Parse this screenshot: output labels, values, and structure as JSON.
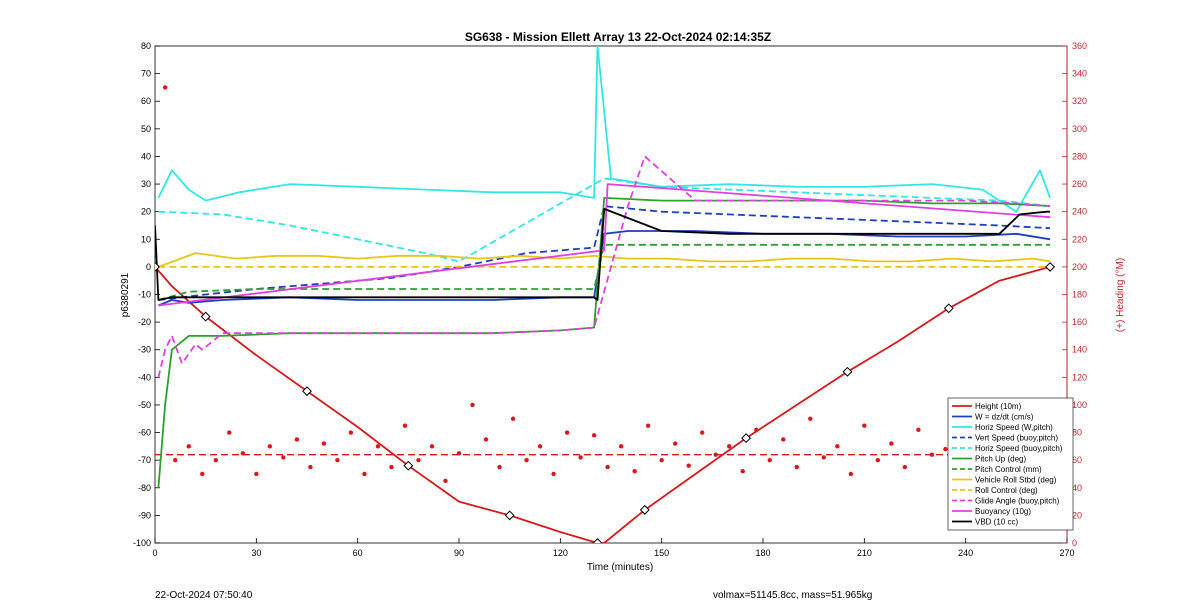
{
  "chart_data": {
    "type": "line",
    "title": "SG638 - Mission Ellett Array 13 22-Oct-2024 02:14:35Z",
    "xlabel": "Time (minutes)",
    "ylabel": "p6380291",
    "ylabel_right": "(+) Heading (°M)",
    "xlim": [
      0,
      270
    ],
    "ylim": [
      -100,
      80
    ],
    "ylim_right": [
      0,
      360
    ],
    "xticks": [
      0,
      30,
      60,
      90,
      120,
      150,
      180,
      210,
      240,
      270
    ],
    "yticks": [
      80,
      70,
      60,
      50,
      40,
      30,
      20,
      10,
      0,
      -10,
      -20,
      -30,
      -40,
      -50,
      -60,
      -70,
      -80,
      -90,
      -100
    ],
    "yticks_right": [
      360,
      340,
      320,
      300,
      280,
      260,
      240,
      220,
      200,
      180,
      160,
      140,
      120,
      100,
      80,
      60,
      40,
      20,
      0
    ],
    "grid": false,
    "legend_position": "bottom-right",
    "footer_left": "22-Oct-2024 07:50:40",
    "footer_right": "volmax=51145.8cc, mass=51.965kg",
    "series": [
      {
        "name": "Height (10m)",
        "color": "#d7191c",
        "style": "solid",
        "x": [
          0,
          5,
          15,
          30,
          45,
          60,
          75,
          90,
          105,
          120,
          131,
          133,
          145,
          160,
          175,
          190,
          205,
          220,
          235,
          250,
          265
        ],
        "y": [
          0,
          -7,
          -18,
          -32,
          -45,
          -58,
          -72,
          -85,
          -90,
          -96,
          -100,
          -100,
          -88,
          -75,
          -62,
          -50,
          -38,
          -27,
          -15,
          -5,
          0
        ]
      },
      {
        "name": "W = dz/dt (cm/s)",
        "color": "#1f3fbf",
        "style": "solid",
        "x": [
          1,
          5,
          10,
          20,
          40,
          60,
          80,
          100,
          120,
          130,
          133,
          140,
          160,
          180,
          200,
          220,
          240,
          255,
          265
        ],
        "y": [
          -14,
          -12,
          -13,
          -12,
          -11,
          -12,
          -12,
          -12,
          -11,
          -11,
          12,
          13,
          13,
          12,
          12,
          11,
          11,
          12,
          10
        ]
      },
      {
        "name": "Horiz Speed (W,pitch)",
        "color": "#33e6e6",
        "style": "solid",
        "x": [
          1,
          5,
          10,
          15,
          25,
          40,
          60,
          80,
          100,
          120,
          130,
          131,
          135,
          150,
          170,
          190,
          210,
          230,
          245,
          255,
          262,
          265
        ],
        "y": [
          25,
          35,
          28,
          24,
          27,
          30,
          29,
          28,
          27,
          27,
          25,
          80,
          32,
          29,
          30,
          29,
          29,
          30,
          28,
          20,
          35,
          25
        ]
      },
      {
        "name": "Vert Speed (buoy,pitch)",
        "color": "#1f3fbf",
        "style": "dashed",
        "x": [
          1,
          15,
          30,
          50,
          70,
          90,
          110,
          130,
          133,
          150,
          170,
          190,
          210,
          230,
          250,
          265
        ],
        "y": [
          -12,
          -10,
          -8,
          -6,
          -4,
          0,
          5,
          7,
          22,
          20,
          19,
          18,
          17,
          16,
          15,
          14
        ]
      },
      {
        "name": "Horiz Speed (buoy,pitch)",
        "color": "#33e6e6",
        "style": "dashed",
        "x": [
          1,
          20,
          40,
          60,
          80,
          90,
          133,
          150,
          170,
          190,
          210,
          230,
          250,
          265
        ],
        "y": [
          20,
          19,
          15,
          10,
          5,
          2,
          32,
          29,
          28,
          27,
          26,
          25,
          24,
          22
        ]
      },
      {
        "name": "Pitch Up (deg)",
        "color": "#2ca02c",
        "style": "solid",
        "x": [
          1,
          3,
          5,
          10,
          20,
          40,
          60,
          80,
          100,
          120,
          130,
          133,
          150,
          170,
          190,
          210,
          230,
          250,
          265
        ],
        "y": [
          -80,
          -50,
          -30,
          -25,
          -25,
          -24,
          -24,
          -24,
          -24,
          -23,
          -22,
          25,
          24,
          24,
          24,
          24,
          23,
          23,
          22
        ]
      },
      {
        "name": "Pitch Control (mm)",
        "color": "#2ca02c",
        "style": "dashed",
        "x": [
          1,
          10,
          30,
          50,
          70,
          90,
          110,
          130,
          133,
          150,
          170,
          190,
          210,
          230,
          250,
          265
        ],
        "y": [
          -12,
          -9,
          -8,
          -8,
          -8,
          -8,
          -8,
          -8,
          8,
          8,
          8,
          8,
          8,
          8,
          8,
          8
        ]
      },
      {
        "name": "Vehicle Roll Stbd (deg)",
        "color": "#e6c619",
        "style": "solid",
        "x": [
          1,
          12,
          24,
          36,
          48,
          60,
          72,
          84,
          96,
          108,
          120,
          130,
          140,
          152,
          164,
          176,
          188,
          200,
          212,
          224,
          236,
          248,
          260,
          265
        ],
        "y": [
          0,
          5,
          3,
          4,
          4,
          3,
          4,
          4,
          3,
          4,
          3,
          4,
          3,
          3,
          2,
          2,
          3,
          3,
          2,
          2,
          3,
          2,
          3,
          2
        ]
      },
      {
        "name": "Roll Control (deg)",
        "color": "#e6c619",
        "style": "dashed",
        "x": [
          1,
          20,
          40,
          60,
          80,
          100,
          120,
          130,
          133,
          150,
          170,
          190,
          210,
          230,
          250,
          265
        ],
        "y": [
          0,
          0,
          0,
          0,
          0,
          0,
          0,
          0,
          0,
          0,
          0,
          0,
          0,
          0,
          0,
          0
        ]
      },
      {
        "name": "Glide Angle (buoy,pitch)",
        "color": "#e040e0",
        "style": "dashed",
        "x": [
          1,
          3,
          5,
          8,
          12,
          14,
          20,
          40,
          60,
          80,
          100,
          120,
          130,
          140,
          145,
          160,
          180,
          200,
          220,
          240,
          255,
          265
        ],
        "y": [
          -40,
          -30,
          -25,
          -35,
          -28,
          -30,
          -24,
          -24,
          -24,
          -24,
          -24,
          -23,
          -22,
          22,
          40,
          24,
          24,
          24,
          24,
          24,
          23,
          22
        ]
      },
      {
        "name": "Buoyancy (10g)",
        "color": "#e040e0",
        "style": "solid",
        "x": [
          1,
          133,
          134,
          265
        ],
        "y": [
          -14,
          6,
          30,
          18
        ]
      },
      {
        "name": "VBD (10 cc)",
        "color": "#000000",
        "style": "solid",
        "x": [
          0,
          1,
          5,
          20,
          40,
          60,
          80,
          100,
          120,
          130,
          131,
          133,
          150,
          170,
          190,
          210,
          230,
          250,
          256,
          264,
          265
        ],
        "y": [
          15,
          -12,
          -11,
          -11,
          -11,
          -11,
          -11,
          -11,
          -11,
          -11,
          -12,
          21,
          13,
          12,
          12,
          12,
          12,
          12,
          19,
          20,
          20
        ]
      }
    ],
    "heading_series": {
      "name": "Heading (°M)",
      "color": "#d7191c",
      "reference_value": 64,
      "x": [
        3,
        6,
        10,
        14,
        18,
        22,
        26,
        30,
        34,
        38,
        42,
        46,
        50,
        54,
        58,
        62,
        66,
        70,
        74,
        78,
        82,
        86,
        90,
        94,
        98,
        102,
        106,
        110,
        114,
        118,
        122,
        126,
        130,
        134,
        138,
        142,
        146,
        150,
        154,
        158,
        162,
        166,
        170,
        174,
        178,
        182,
        186,
        190,
        194,
        198,
        202,
        206,
        210,
        214,
        218,
        222,
        226,
        230,
        234,
        238,
        242,
        246,
        250,
        254,
        258,
        262
      ],
      "y": [
        330,
        60,
        70,
        50,
        60,
        80,
        65,
        50,
        70,
        62,
        75,
        55,
        72,
        60,
        80,
        50,
        70,
        55,
        85,
        60,
        70,
        45,
        65,
        100,
        75,
        55,
        90,
        60,
        70,
        50,
        80,
        62,
        78,
        55,
        70,
        52,
        85,
        60,
        72,
        56,
        80,
        64,
        70,
        52,
        82,
        60,
        75,
        55,
        90,
        62,
        70,
        50,
        85,
        60,
        72,
        55,
        82,
        64,
        68,
        50,
        80,
        60,
        70,
        56,
        75,
        64
      ]
    }
  }
}
